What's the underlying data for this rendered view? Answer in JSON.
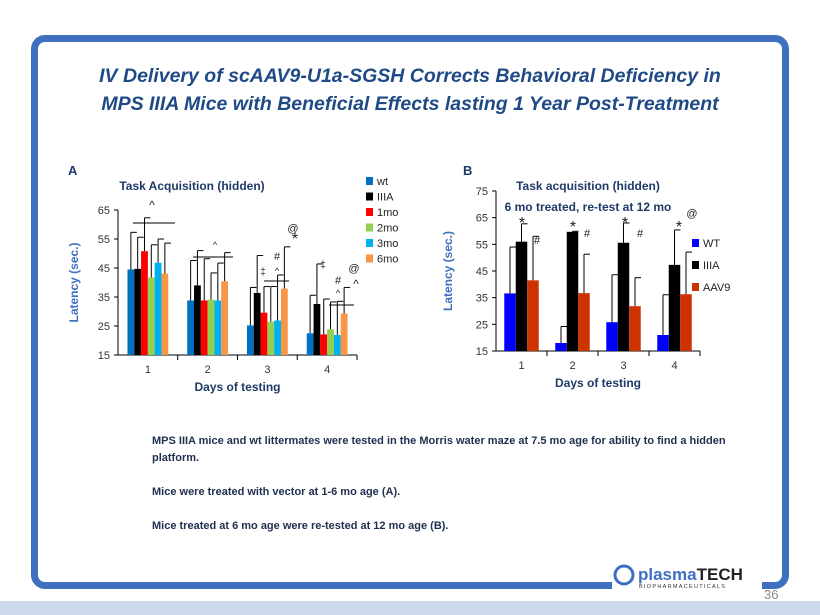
{
  "title_line1": "IV Delivery of scAAV9-U1a-SGSH Corrects Behavioral Deficiency in",
  "title_line2": "MPS IIIA Mice with Beneficial Effects lasting 1 Year Post-Treatment",
  "caption": [
    "MPS IIIA mice and wt littermates were tested in the Morris water maze at 7.5 mo age for ability to find a hidden platform.",
    "Mice were treated with vector at 1-6 mo age (A).",
    "Mice treated at 6 mo  age were re-tested at 12 mo age (B)."
  ],
  "page_number": "36",
  "logo": {
    "name": "plasmaTECH",
    "sub": "BIOPHARMACEUTICALS"
  },
  "chart_data": [
    {
      "panel": "A",
      "type": "bar",
      "title": "Task Acquisition (hidden)",
      "xlabel": "Days of testing",
      "ylabel": "Latency (sec.)",
      "ylim": [
        15,
        65
      ],
      "yticks": [
        15,
        25,
        35,
        45,
        55,
        65
      ],
      "categories": [
        "1",
        "2",
        "3",
        "4"
      ],
      "legend_placement": "right",
      "series": [
        {
          "name": "wt",
          "color": "#0070c0",
          "values": [
            44.5,
            33.8,
            25.2,
            22.5
          ],
          "err_top": [
            57.3,
            47.6,
            38.3,
            35.6
          ]
        },
        {
          "name": "IIIA",
          "color": "#000000",
          "values": [
            44.7,
            39,
            36.4,
            32.6
          ],
          "err_top": [
            55.6,
            51,
            49.3,
            46.4
          ]
        },
        {
          "name": "1mo",
          "color": "#ff0000",
          "values": [
            50.8,
            33.8,
            29.6,
            22.1
          ],
          "err_top": [
            62.3,
            48.2,
            38.6,
            34.3
          ]
        },
        {
          "name": "2mo",
          "color": "#92d050",
          "values": [
            41.7,
            34.1,
            26.5,
            23.9
          ],
          "err_top": [
            53,
            43.3,
            38.6,
            33.3
          ]
        },
        {
          "name": "3mo",
          "color": "#00b0f0",
          "values": [
            46.8,
            33.8,
            26.9,
            21.9
          ],
          "err_top": [
            55,
            46.7,
            42.6,
            33.5
          ]
        },
        {
          "name": "6mo",
          "color": "#f79646",
          "values": [
            43.1,
            40.4,
            37.9,
            29.3
          ],
          "err_top": [
            53.6,
            50.3,
            52.3,
            38.3
          ]
        }
      ],
      "annotations": [
        "^",
        "^",
        "‡",
        "#",
        "^",
        "@",
        "*",
        "‡",
        "#",
        "^",
        "@",
        "^"
      ]
    },
    {
      "panel": "B",
      "type": "bar",
      "title": "Task acquisition (hidden)",
      "subtitle": "6 mo treated, re-test at 12 mo",
      "xlabel": "Days of testing",
      "ylabel": "Latency (sec.)",
      "ylim": [
        15,
        75
      ],
      "yticks": [
        15,
        25,
        35,
        45,
        55,
        65,
        75
      ],
      "categories": [
        "1",
        "2",
        "3",
        "4"
      ],
      "legend_placement": "right",
      "series": [
        {
          "name": "WT",
          "color": "#0000ff",
          "values": [
            36.6,
            18,
            25.8,
            21
          ],
          "err_top": [
            54,
            24.2,
            43.6,
            36.1
          ]
        },
        {
          "name": "IIIA",
          "color": "#000000",
          "values": [
            56,
            59.7,
            55.6,
            47.3
          ],
          "err_top": [
            62.7,
            59.9,
            63,
            60.4
          ]
        },
        {
          "name": "AAV9",
          "color": "#cc3300",
          "values": [
            41.5,
            36.7,
            31.8,
            36.3
          ],
          "err_top": [
            58,
            51.3,
            42.5,
            52.1
          ]
        }
      ],
      "annotations": [
        "*",
        "#",
        "*",
        "#",
        "*",
        "#",
        "*",
        "@"
      ]
    }
  ]
}
